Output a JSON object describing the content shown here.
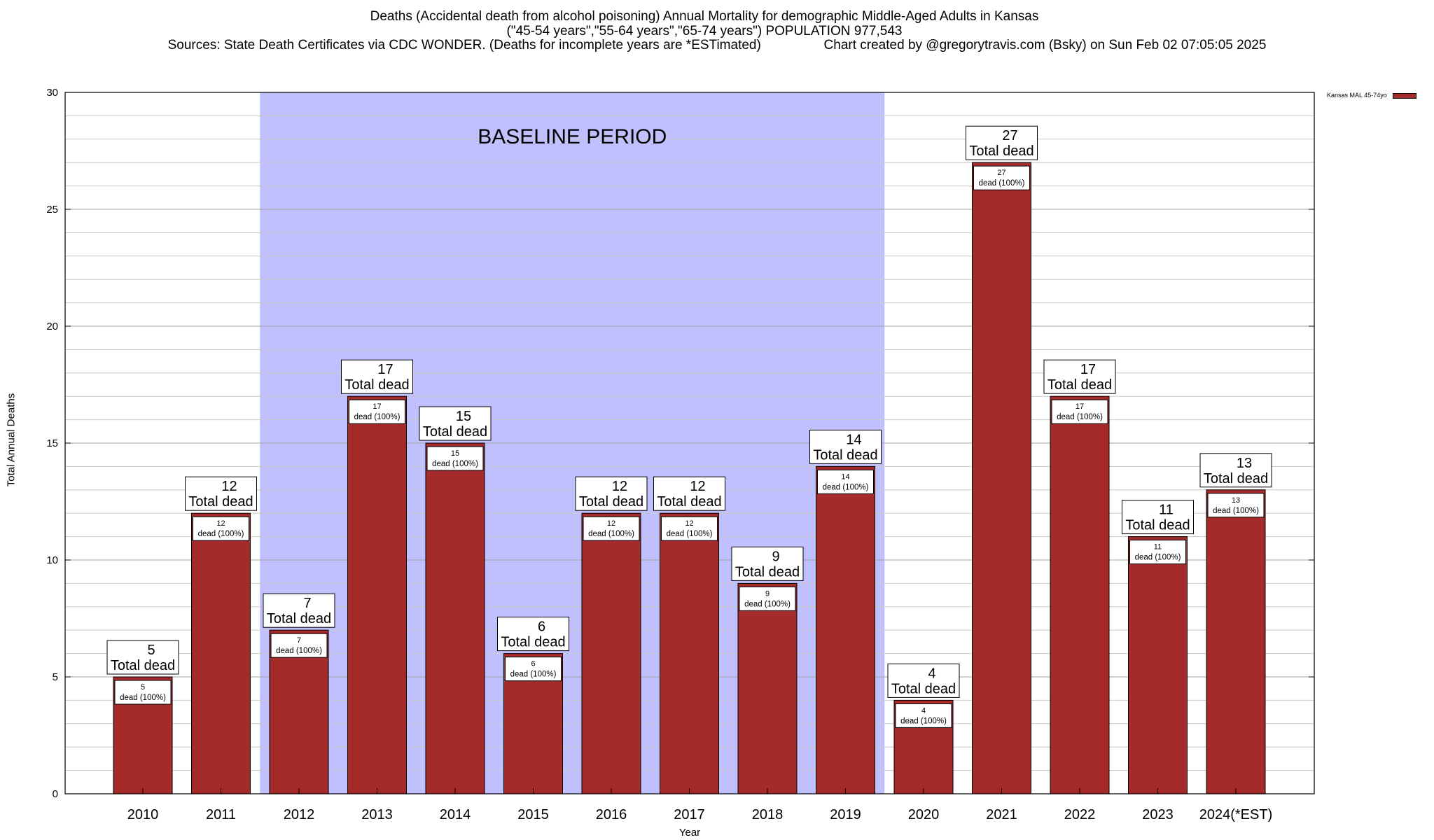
{
  "chart_data": {
    "type": "bar",
    "title_lines": [
      "Deaths (Accidental death from alcohol poisoning) Annual Mortality for demographic Middle-Aged Adults in Kansas",
      "(\"45-54 years\",\"55-64 years\",\"65-74 years\") POPULATION 977,543",
      "Sources: State Death Certificates via CDC WONDER. (Deaths for incomplete years are *ESTimated)                 Chart created by @gregorytravis.com (Bsky) on Sun Feb 02 07:05:05 2025"
    ],
    "xlabel": "Year",
    "ylabel": "Total Annual Deaths",
    "ylim": [
      0,
      30
    ],
    "yticks": [
      0,
      5,
      10,
      15,
      20,
      25,
      30
    ],
    "categories": [
      "2010",
      "2011",
      "2012",
      "2013",
      "2014",
      "2015",
      "2016",
      "2017",
      "2018",
      "2019",
      "2020",
      "2021",
      "2022",
      "2023",
      "2024(*EST)"
    ],
    "series": [
      {
        "name": "Kansas MAL 45-74yo",
        "color": "#a52a2a",
        "values": [
          5,
          12,
          7,
          17,
          15,
          6,
          12,
          12,
          9,
          14,
          4,
          27,
          17,
          11,
          13
        ]
      }
    ],
    "annotation_top_suffix": "Total dead",
    "annotation_inner_suffix": "dead (100%)",
    "baseline_region": {
      "label": "BASELINE PERIOD",
      "from": "2012",
      "to": "2019",
      "color": "#c0c0ff"
    },
    "grid": true,
    "legend_position": "top-right"
  }
}
